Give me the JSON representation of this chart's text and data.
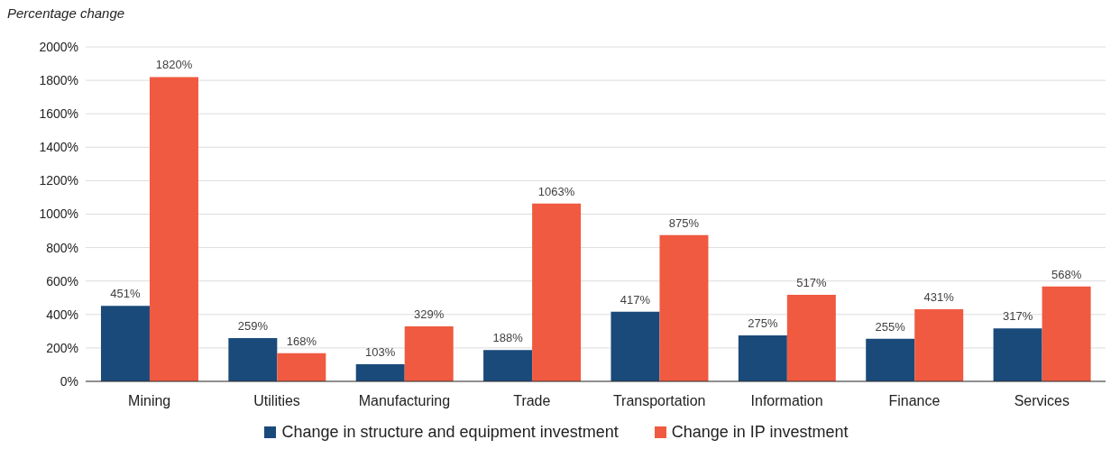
{
  "chart_data": {
    "type": "bar",
    "ylabel": "Percentage change",
    "categories": [
      "Mining",
      "Utilities",
      "Manufacturing",
      "Trade",
      "Transportation",
      "Information",
      "Finance",
      "Services"
    ],
    "series": [
      {
        "name": "Change in structure and equipment investment",
        "color": "#1a4a7a",
        "values": [
          451,
          259,
          103,
          188,
          417,
          275,
          255,
          317
        ],
        "value_labels": [
          "451%",
          "259%",
          "103%",
          "188%",
          "417%",
          "275%",
          "255%",
          "317%"
        ]
      },
      {
        "name": "Change in IP investment",
        "color": "#f05a40",
        "values": [
          1820,
          168,
          329,
          1063,
          875,
          517,
          431,
          568
        ],
        "value_labels": [
          "1820%",
          "168%",
          "329%",
          "1063%",
          "875%",
          "517%",
          "431%",
          "568%"
        ]
      }
    ],
    "ylim": [
      0,
      2000
    ],
    "yticks": [
      {
        "value": 0,
        "label": "0%"
      },
      {
        "value": 200,
        "label": "200%"
      },
      {
        "value": 400,
        "label": "400%"
      },
      {
        "value": 600,
        "label": "600%"
      },
      {
        "value": 800,
        "label": "800%"
      },
      {
        "value": 1000,
        "label": "1000%"
      },
      {
        "value": 1200,
        "label": "1200%"
      },
      {
        "value": 1400,
        "label": "1400%"
      },
      {
        "value": 1600,
        "label": "1600%"
      },
      {
        "value": 1800,
        "label": "1800%"
      },
      {
        "value": 2000,
        "label": "2000%"
      }
    ],
    "grid": "y",
    "legend": "bottom"
  }
}
